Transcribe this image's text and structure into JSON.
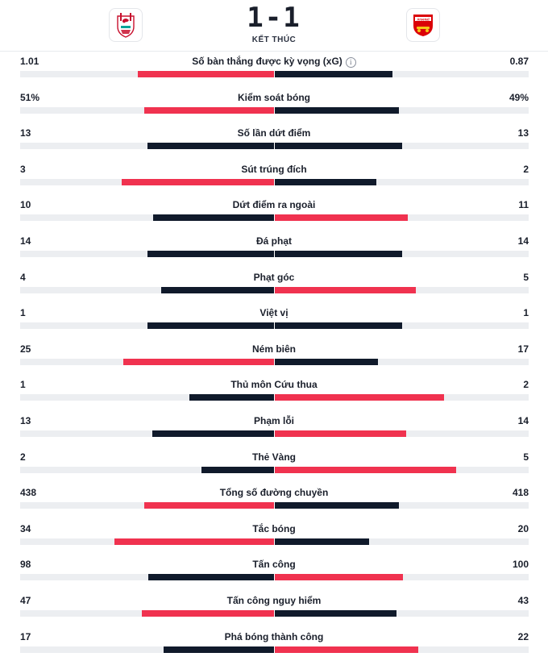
{
  "match": {
    "score": "1-1",
    "status": "KẾT THÚC",
    "home_logo": "liverpool-crest",
    "away_logo": "arsenal-crest",
    "away_logo_text": "Arsenal"
  },
  "colors": {
    "winner": "#f0324f",
    "other": "#101a2b",
    "track": "#eceef1"
  },
  "stats": [
    {
      "label": "Số bàn thắng được kỳ vọng (xG)",
      "home": "1.01",
      "away": "0.87",
      "home_share": 0.537,
      "away_share": 0.463,
      "winner": "home",
      "info_icon": true
    },
    {
      "label": "Kiểm soát bóng",
      "home": "51%",
      "away": "49%",
      "home_share": 0.51,
      "away_share": 0.49,
      "winner": "home"
    },
    {
      "label": "Số lần dứt điểm",
      "home": "13",
      "away": "13",
      "home_share": 0.5,
      "away_share": 0.5,
      "winner": "none"
    },
    {
      "label": "Sút trúng đích",
      "home": "3",
      "away": "2",
      "home_share": 0.6,
      "away_share": 0.4,
      "winner": "home"
    },
    {
      "label": "Dứt điểm ra ngoài",
      "home": "10",
      "away": "11",
      "home_share": 0.476,
      "away_share": 0.524,
      "winner": "away"
    },
    {
      "label": "Đá phạt",
      "home": "14",
      "away": "14",
      "home_share": 0.5,
      "away_share": 0.5,
      "winner": "none"
    },
    {
      "label": "Phạt góc",
      "home": "4",
      "away": "5",
      "home_share": 0.444,
      "away_share": 0.556,
      "winner": "away"
    },
    {
      "label": "Việt vị",
      "home": "1",
      "away": "1",
      "home_share": 0.5,
      "away_share": 0.5,
      "winner": "none"
    },
    {
      "label": "Ném biên",
      "home": "25",
      "away": "17",
      "home_share": 0.595,
      "away_share": 0.405,
      "winner": "home"
    },
    {
      "label": "Thủ môn Cứu thua",
      "home": "1",
      "away": "2",
      "home_share": 0.333,
      "away_share": 0.667,
      "winner": "away"
    },
    {
      "label": "Phạm lỗi",
      "home": "13",
      "away": "14",
      "home_share": 0.481,
      "away_share": 0.519,
      "winner": "away"
    },
    {
      "label": "Thẻ Vàng",
      "home": "2",
      "away": "5",
      "home_share": 0.286,
      "away_share": 0.714,
      "winner": "away"
    },
    {
      "label": "Tổng số đường chuyền",
      "home": "438",
      "away": "418",
      "home_share": 0.512,
      "away_share": 0.488,
      "winner": "home"
    },
    {
      "label": "Tắc bóng",
      "home": "34",
      "away": "20",
      "home_share": 0.63,
      "away_share": 0.37,
      "winner": "home"
    },
    {
      "label": "Tấn công",
      "home": "98",
      "away": "100",
      "home_share": 0.495,
      "away_share": 0.505,
      "winner": "away"
    },
    {
      "label": "Tấn công nguy hiểm",
      "home": "47",
      "away": "43",
      "home_share": 0.522,
      "away_share": 0.478,
      "winner": "home"
    },
    {
      "label": "Phá bóng thành công",
      "home": "17",
      "away": "22",
      "home_share": 0.436,
      "away_share": 0.564,
      "winner": "away"
    }
  ]
}
